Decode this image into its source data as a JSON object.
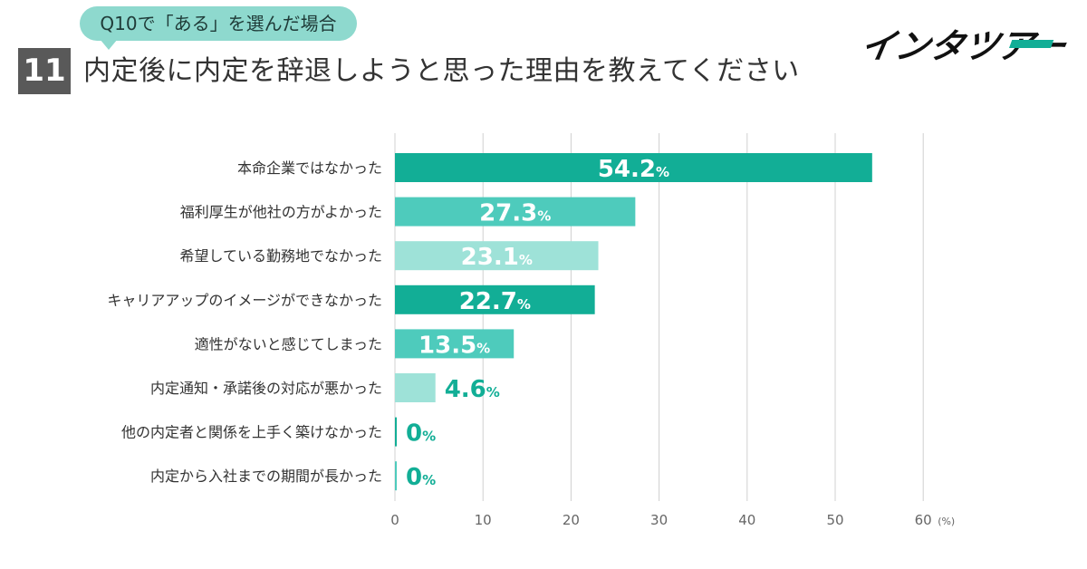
{
  "header": {
    "question_tag": "Q10で「ある」を選んだ場合",
    "question_number": "11",
    "title": "内定後に内定を辞退しようと思った理由を教えてください"
  },
  "brand": {
    "logo_text": "インタツアー"
  },
  "colors": {
    "dark_teal": "#12ae96",
    "mid_teal": "#4ecbbc",
    "light_teal": "#9ee2d8",
    "value_text_outside": "#12ae96",
    "value_text_inside": "#ffffff",
    "grid": "#d0d0d0",
    "tag_bg": "#8ed9ce",
    "number_box": "#595959"
  },
  "chart_data": {
    "type": "bar",
    "orientation": "horizontal",
    "categories": [
      "本命企業ではなかった",
      "福利厚生が他社の方がよかった",
      "希望している勤務地でなかった",
      "キャリアアップのイメージができなかった",
      "適性がないと感じてしまった",
      "内定通知・承諾後の対応が悪かった",
      "他の内定者と関係を上手く築けなかった",
      "内定から入社までの期間が長かった"
    ],
    "values": [
      54.2,
      27.3,
      23.1,
      22.7,
      13.5,
      4.6,
      0,
      0
    ],
    "value_labels": [
      "54.2",
      "27.3",
      "23.1",
      "22.7",
      "13.5",
      "4.6",
      "0",
      "0"
    ],
    "value_suffix": "%",
    "bar_colors": [
      "#12ae96",
      "#4ecbbc",
      "#9ee2d8",
      "#12ae96",
      "#4ecbbc",
      "#9ee2d8",
      "#12ae96",
      "#4ecbbc"
    ],
    "x_ticks": [
      "0",
      "10",
      "20",
      "30",
      "40",
      "50",
      "60"
    ],
    "x_unit": "(%)",
    "xlim": [
      0,
      60
    ],
    "grid": true,
    "title": "",
    "xlabel": "",
    "ylabel": ""
  }
}
